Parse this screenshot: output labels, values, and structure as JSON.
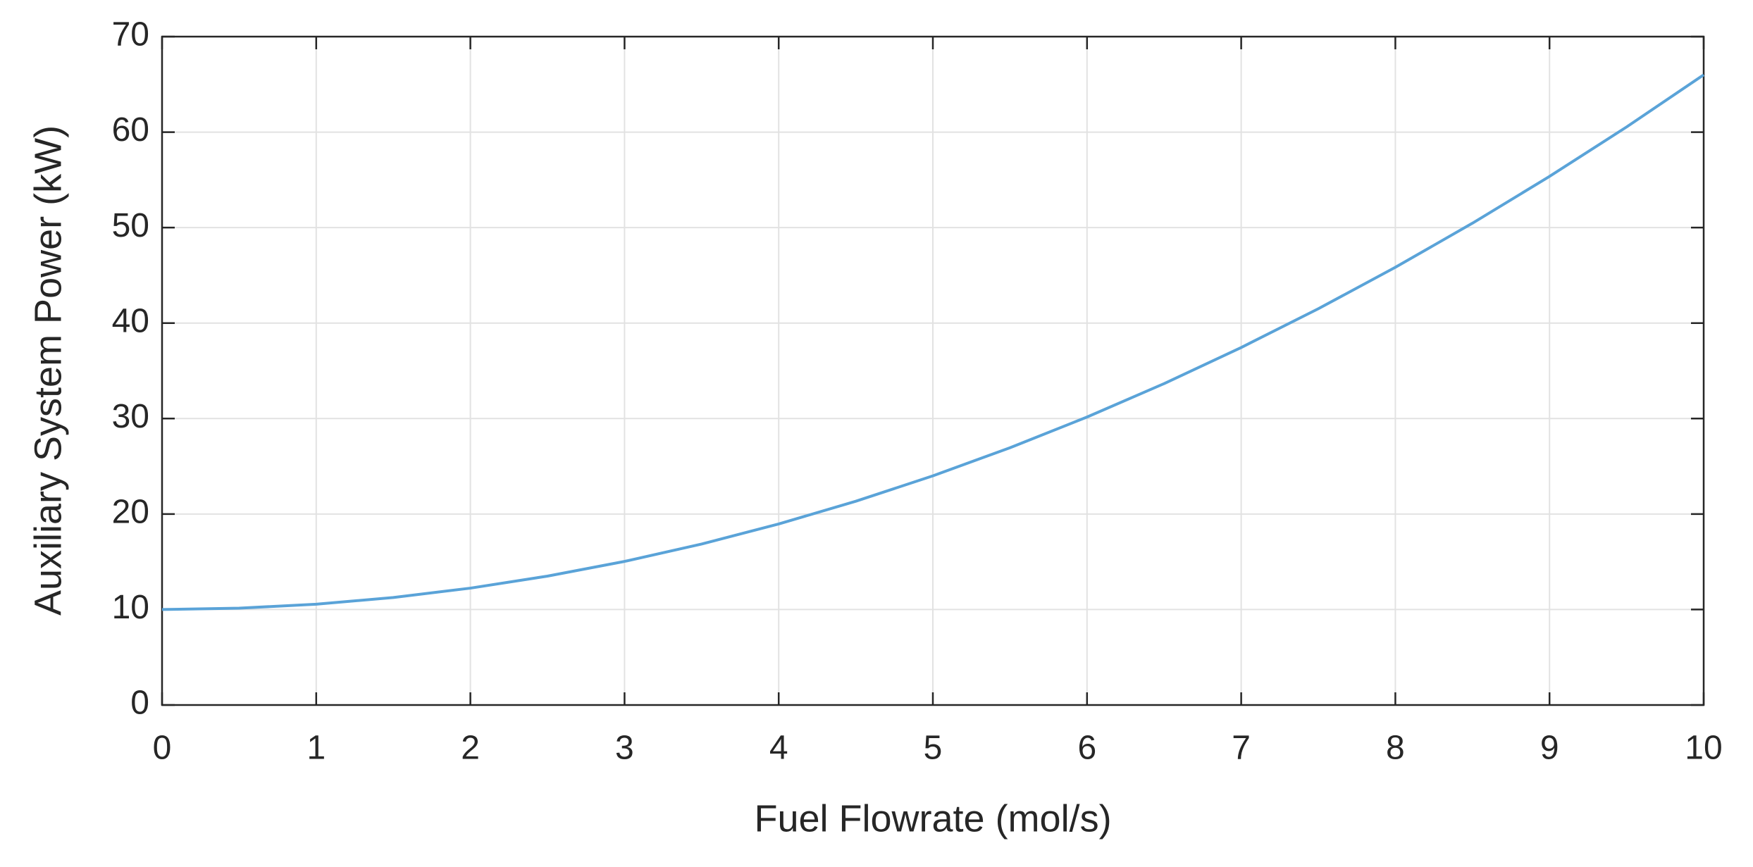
{
  "chart_data": {
    "type": "line",
    "xlabel": "Fuel Flowrate (mol/s)",
    "ylabel": "Auxiliary System Power (kW)",
    "x": [
      0,
      0.5,
      1,
      1.5,
      2,
      2.5,
      3,
      3.5,
      4,
      4.5,
      5,
      5.5,
      6,
      6.5,
      7,
      7.5,
      8,
      8.5,
      9,
      9.5,
      10
    ],
    "series": [
      {
        "color": "#5aa3d8",
        "values": [
          10,
          10.14,
          10.56,
          11.26,
          12.24,
          13.5,
          15.04,
          16.86,
          18.96,
          21.34,
          24,
          26.94,
          30.16,
          33.66,
          37.44,
          41.5,
          45.84,
          50.46,
          55.36,
          60.54,
          66
        ]
      }
    ],
    "xlim": [
      0,
      10
    ],
    "xticks": [
      0,
      1,
      2,
      3,
      4,
      5,
      6,
      7,
      8,
      9,
      10
    ],
    "ylim": [
      0,
      70
    ],
    "yticks": [
      0,
      10,
      20,
      30,
      40,
      50,
      60,
      70
    ],
    "grid": true
  }
}
